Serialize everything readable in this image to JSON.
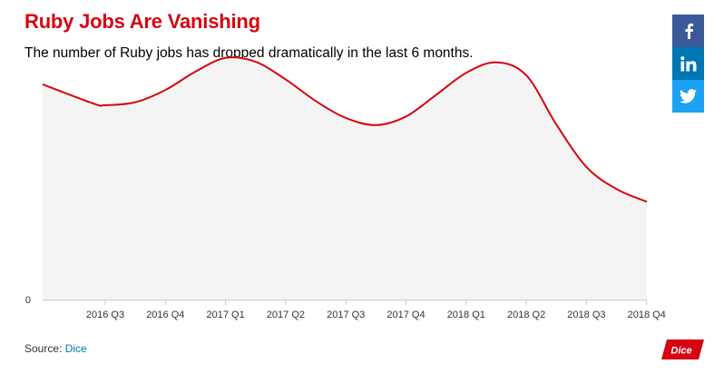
{
  "header": {
    "title": "Ruby Jobs Are Vanishing",
    "subtitle": "The number of Ruby jobs has dropped dramatically in the last 6 months."
  },
  "share": [
    {
      "name": "facebook",
      "icon": "facebook-icon",
      "color": "#3b5998"
    },
    {
      "name": "linkedin",
      "icon": "linkedin-icon",
      "color": "#0077b5"
    },
    {
      "name": "twitter",
      "icon": "twitter-icon",
      "color": "#1da1f2"
    }
  ],
  "footer": {
    "source_prefix": "Source: ",
    "source_link": "Dice",
    "logo_text": "Dice"
  },
  "colors": {
    "accent": "#d40511",
    "area_fill": "#f4f4f4",
    "link": "#0077b5"
  },
  "chart_data": {
    "type": "area",
    "title": "Ruby Jobs Are Vanishing",
    "subtitle": "The number of Ruby jobs has dropped dramatically in the last 6 months.",
    "xlabel": "",
    "ylabel": "",
    "categories": [
      "2016 Q3",
      "2016 Q4",
      "2017 Q1",
      "2017 Q2",
      "2017 Q3",
      "2017 Q4",
      "2018 Q1",
      "2018 Q2",
      "2018 Q3",
      "2018 Q4"
    ],
    "y_ticks": [
      "0"
    ],
    "y_min": 0,
    "y_max": 100,
    "grid": false,
    "legend": "none",
    "series": [
      {
        "x": [
          -1,
          -0.2,
          0,
          0.5,
          1,
          1.5,
          2,
          2.5,
          3,
          3.5,
          4,
          4.5,
          5,
          5.5,
          6,
          6.5,
          7,
          7.5,
          8,
          8.5,
          9
        ],
        "values": [
          87.8,
          80,
          79.3,
          80.5,
          85.5,
          93,
          98.6,
          97,
          89.8,
          81,
          74.1,
          71.2,
          74.7,
          83.5,
          92.5,
          96.8,
          91.5,
          71.4,
          54.1,
          45.1,
          39.9
        ]
      }
    ]
  }
}
